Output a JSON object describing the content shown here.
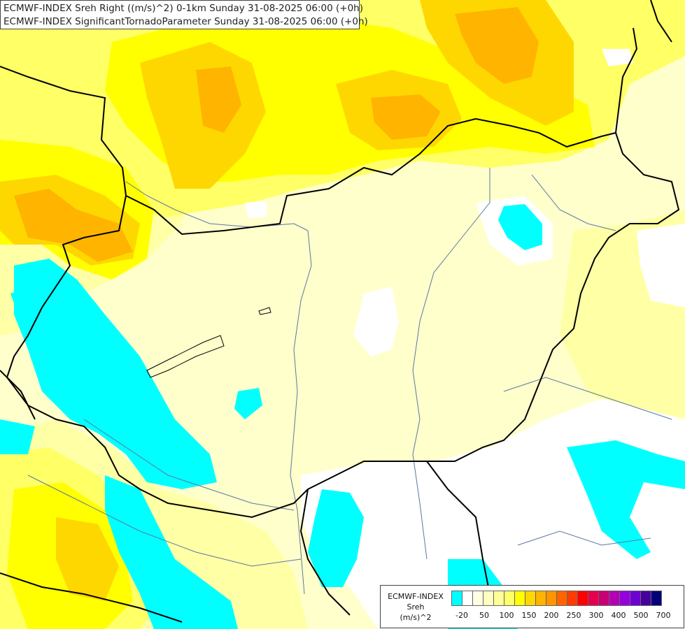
{
  "header": {
    "line1": "ECMWF-INDEX Sreh Right ((m/s)^2) 0-1km Sunday 31-08-2025 06:00 (+0h)",
    "line2": "ECMWF-INDEX SignificantTornadoParameter Sunday 31-08-2025 06:00 (+0h)"
  },
  "legend": {
    "title_line1": "ECMWF-INDEX",
    "title_line2": "Sreh",
    "title_line3": "(m/s)^2",
    "colors": [
      "#00ffff",
      "#ffffff",
      "#ffffe6",
      "#ffffc0",
      "#ffff99",
      "#ffff66",
      "#ffff00",
      "#ffd700",
      "#ffb400",
      "#ff9600",
      "#ff6400",
      "#ff3c00",
      "#ff0000",
      "#e6004b",
      "#c80073",
      "#b400b4",
      "#9600dc",
      "#6e00d2",
      "#4600a0",
      "#000078"
    ],
    "tick_labels": [
      "-20",
      "50",
      "100",
      "150",
      "200",
      "250",
      "300",
      "400",
      "500",
      "700"
    ]
  },
  "map": {
    "colors": {
      "background": "#ffffcc",
      "pale_yellow": "#ffffa6",
      "yellow": "#ffff66",
      "bright_yellow": "#ffff00",
      "gold": "#ffd700",
      "orange": "#ffb400",
      "white": "#ffffff",
      "cyan": "#00ffff",
      "border": "#000000",
      "river": "#5a78a0"
    }
  }
}
